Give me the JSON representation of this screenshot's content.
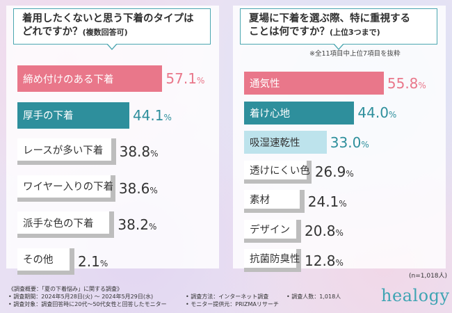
{
  "colors": {
    "pink": "#e9778a",
    "teal": "#2e8f9c",
    "light_teal": "#bde3ec",
    "gray": "#bdbdbd",
    "pink_text": "#e9778a",
    "teal_text": "#2e8f9c",
    "dark_text": "#333333"
  },
  "left": {
    "title_line1": "着用したくないと思う下着のタイプは",
    "title_line2": "どれですか？",
    "title_sub": "(複数回答可)"
  },
  "right": {
    "title_line1": "夏場に下着を選ぶ際、特に重視する",
    "title_line2": "ことは何ですか？",
    "title_sub": "(上位3つまで)",
    "note": "※全11項目中上位7項目を抜粋"
  },
  "chart_data": [
    {
      "type": "bar",
      "orientation": "horizontal",
      "categories": [
        "締め付けのある下着",
        "厚手の下着",
        "レースが多い下着",
        "ワイヤー入りの下着",
        "派手な色の下着",
        "その他"
      ],
      "values": [
        57.1,
        44.1,
        38.8,
        38.6,
        38.2,
        2.1
      ],
      "value_labels": [
        "57.1",
        "44.1",
        "38.8",
        "38.6",
        "38.2",
        "2.1"
      ],
      "unit": "%",
      "styles": [
        "pink",
        "teal",
        "gray",
        "gray",
        "gray",
        "gray"
      ]
    },
    {
      "type": "bar",
      "orientation": "horizontal",
      "categories": [
        "通気性",
        "着け心地",
        "吸湿速乾性",
        "透けにくい色",
        "素材",
        "デザイン",
        "抗菌防臭性"
      ],
      "values": [
        55.8,
        44.0,
        33.0,
        26.9,
        24.1,
        20.8,
        12.8
      ],
      "value_labels": [
        "55.8",
        "44.0",
        "33.0",
        "26.9",
        "24.1",
        "20.8",
        "12.8"
      ],
      "unit": "%",
      "styles": [
        "pink",
        "teal",
        "light_teal",
        "gray",
        "gray",
        "gray",
        "gray"
      ]
    }
  ],
  "n_label": "(n=1,018人)",
  "footer": {
    "overview": "《調査概要：「夏の下着悩み」に関する調査》",
    "period": "• 調査期間：2024年5月28日(火) 〜 2024年5月29日(水)",
    "method": "• 調査方法：インターネット調査",
    "count": "• 調査人数：1,018人",
    "target": "• 調査対象：調査回答時に20代〜50代女性と回答したモニター",
    "provider": "• モニター提供元：PRIZMAリサーチ"
  },
  "logo": "healogy"
}
